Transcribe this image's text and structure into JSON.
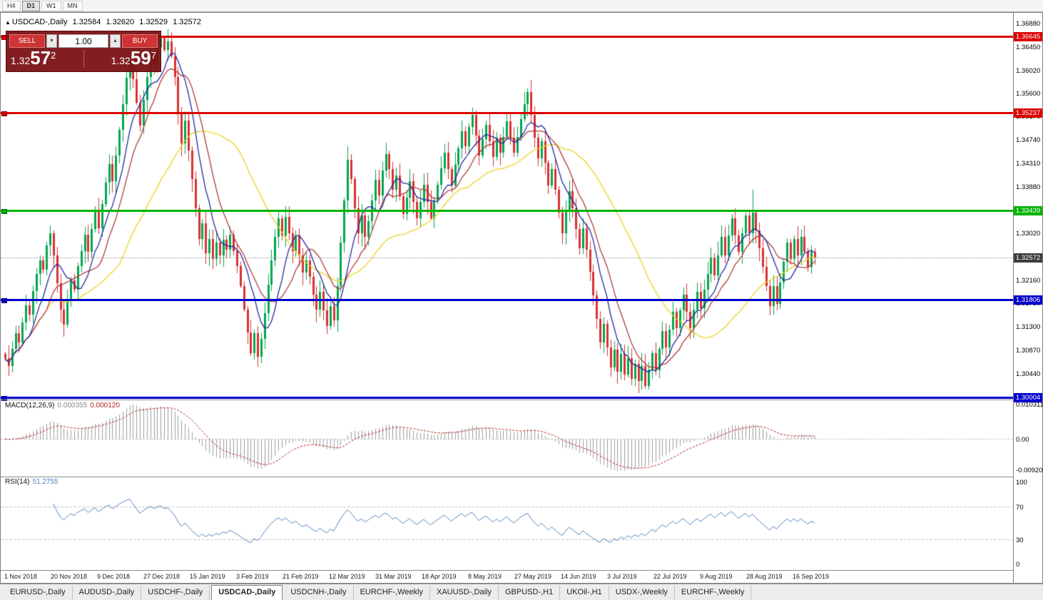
{
  "icons": {
    "direction_up": "▲",
    "spinner_down": "▼",
    "spinner_up": "▲"
  },
  "toolbar": {
    "timeframes": [
      {
        "label": "H4",
        "active": false
      },
      {
        "label": "D1",
        "active": true
      },
      {
        "label": "W1",
        "active": false
      },
      {
        "label": "MN",
        "active": false
      }
    ]
  },
  "chart": {
    "symbol": "USDCAD-,Daily",
    "ohlc": {
      "open": "1.32584",
      "high": "1.32620",
      "low": "1.32529",
      "close": "1.32572"
    }
  },
  "trade_panel": {
    "sell_label": "SELL",
    "buy_label": "BUY",
    "volume": "1.00",
    "sell_price": {
      "prefix": "1.32",
      "main": "57",
      "sup": "2"
    },
    "buy_price": {
      "prefix": "1.32",
      "main": "59",
      "sup": "7"
    }
  },
  "price_axis": {
    "ticks": [
      "1.36880",
      "1.36450",
      "1.36020",
      "1.35600",
      "1.35170",
      "1.34740",
      "1.34310",
      "1.33880",
      "1.33020",
      "1.32160",
      "1.31730",
      "1.31300",
      "1.30870",
      "1.30440"
    ],
    "levels": [
      {
        "label": "1.36645",
        "price": 1.36645,
        "color": "#dd0000",
        "kind": "resistance-line"
      },
      {
        "label": "1.35237",
        "price": 1.35237,
        "color": "#dd0000",
        "kind": "resistance-line"
      },
      {
        "label": "1.33439",
        "price": 1.33439,
        "color": "#00b400",
        "kind": "pivot-line"
      },
      {
        "label": "1.31806",
        "price": 1.31806,
        "color": "#0000cc",
        "kind": "support-line"
      },
      {
        "label": "1.30004",
        "price": 1.30004,
        "color": "#0000cc",
        "kind": "support-line"
      }
    ],
    "current": {
      "label": "1.32572",
      "price": 1.32572,
      "bg": "#3c3c3c"
    }
  },
  "macd": {
    "name": "MACD(12,26,9)",
    "value_main": "0.000355",
    "value_signal": "0.000120",
    "axis": [
      "0.010311",
      "0.00",
      "-0.009203"
    ]
  },
  "rsi": {
    "name": "RSI(14)",
    "value": "51.2755",
    "axis": [
      "100",
      "70",
      "30",
      "0"
    ]
  },
  "date_axis": {
    "labels": [
      "1 Nov 2018",
      "20 Nov 2018",
      "9 Dec 2018",
      "27 Dec 2018",
      "15 Jan 2019",
      "3 Feb 2019",
      "21 Feb 2019",
      "12 Mar 2019",
      "31 Mar 2019",
      "18 Apr 2019",
      "8 May 2019",
      "27 May 2019",
      "14 Jun 2019",
      "3 Jul 2019",
      "22 Jul 2019",
      "9 Aug 2019",
      "28 Aug 2019",
      "16 Sep 2019"
    ]
  },
  "tabs": [
    {
      "label": "EURUSD-,Daily",
      "active": false
    },
    {
      "label": "AUDUSD-,Daily",
      "active": false
    },
    {
      "label": "USDCHF-,Daily",
      "active": false
    },
    {
      "label": "USDCAD-,Daily",
      "active": true
    },
    {
      "label": "USDCNH-,Daily",
      "active": false
    },
    {
      "label": "EURCHF-,Weekly",
      "active": false
    },
    {
      "label": "XAUUSD-,Daily",
      "active": false
    },
    {
      "label": "GBPUSD-,H1",
      "active": false
    },
    {
      "label": "UKOil-,H1",
      "active": false
    },
    {
      "label": "USDX-,Weekly",
      "active": false
    },
    {
      "label": "EURCHF-,Weekly",
      "active": false
    }
  ],
  "chart_data": {
    "type": "candlestick",
    "symbol": "USDCAD",
    "timeframe": "Daily",
    "price_axis_top": 1.3688,
    "price_axis_bottom": 1.30004,
    "current_price": 1.32572,
    "up_color": "#00a650",
    "down_color": "#d93030",
    "first_open": 1.308,
    "closes": [
      1.3072,
      1.3058,
      1.309,
      1.3118,
      1.3102,
      1.3138,
      1.317,
      1.3152,
      1.3196,
      1.3228,
      1.3252,
      1.3235,
      1.328,
      1.3302,
      1.3262,
      1.321,
      1.3162,
      1.3134,
      1.3178,
      1.3215,
      1.3198,
      1.3242,
      1.327,
      1.33,
      1.3268,
      1.331,
      1.3345,
      1.3312,
      1.3356,
      1.3395,
      1.343,
      1.3398,
      1.3445,
      1.3492,
      1.354,
      1.3588,
      1.3625,
      1.3585,
      1.3542,
      1.35,
      1.3548,
      1.359,
      1.3632,
      1.3612,
      1.3645,
      1.3662,
      1.364,
      1.3655,
      1.3628,
      1.359,
      1.3525,
      1.3468,
      1.351,
      1.3455,
      1.3402,
      1.3348,
      1.3292,
      1.332,
      1.3265,
      1.3292,
      1.3255,
      1.3285,
      1.3262,
      1.329,
      1.3272,
      1.33,
      1.327,
      1.3242,
      1.3205,
      1.3162,
      1.312,
      1.3082,
      1.3118,
      1.3075,
      1.3108,
      1.3155,
      1.3208,
      1.3252,
      1.3295,
      1.333,
      1.3298,
      1.3332,
      1.3302,
      1.327,
      1.3298,
      1.3262,
      1.323,
      1.3252,
      1.3222,
      1.319,
      1.3162,
      1.3195,
      1.316,
      1.3132,
      1.3168,
      1.3142,
      1.3205,
      1.3285,
      1.3362,
      1.3438,
      1.3402,
      1.3348,
      1.3302,
      1.3335,
      1.3295,
      1.3325,
      1.3362,
      1.34,
      1.3372,
      1.3418,
      1.3448,
      1.342,
      1.3382,
      1.3408,
      1.337,
      1.3338,
      1.3368,
      1.3398,
      1.336,
      1.333,
      1.336,
      1.3392,
      1.336,
      1.333,
      1.3362,
      1.3392,
      1.3422,
      1.345,
      1.342,
      1.339,
      1.3428,
      1.3458,
      1.349,
      1.3462,
      1.3498,
      1.352,
      1.3482,
      1.3445,
      1.3475,
      1.3502,
      1.3472,
      1.3442,
      1.3478,
      1.345,
      1.348,
      1.3508,
      1.3478,
      1.345,
      1.348,
      1.3512,
      1.354,
      1.3562,
      1.352,
      1.3478,
      1.344,
      1.3472,
      1.3432,
      1.339,
      1.342,
      1.3382,
      1.334,
      1.3302,
      1.3342,
      1.338,
      1.3348,
      1.331,
      1.3275,
      1.3312,
      1.3272,
      1.3232,
      1.3188,
      1.3145,
      1.3102,
      1.3135,
      1.3092,
      1.3055,
      1.3088,
      1.3048,
      1.308,
      1.3042,
      1.3072,
      1.3035,
      1.3062,
      1.303,
      1.3058,
      1.3022,
      1.3052,
      1.3082,
      1.305,
      1.309,
      1.3122,
      1.3092,
      1.3125,
      1.3158,
      1.3128,
      1.316,
      1.319,
      1.3158,
      1.3128,
      1.3162,
      1.3195,
      1.3165,
      1.3198,
      1.3228,
      1.3258,
      1.3225,
      1.3262,
      1.3295,
      1.3262,
      1.3298,
      1.333,
      1.3298,
      1.3268,
      1.3302,
      1.3335,
      1.3302,
      1.334,
      1.3308,
      1.3275,
      1.324,
      1.3205,
      1.3168,
      1.3205,
      1.3172,
      1.3212,
      1.325,
      1.3285,
      1.3255,
      1.3292,
      1.3262,
      1.3295,
      1.3268,
      1.324,
      1.3268,
      1.3257
    ],
    "spikes": {
      "36": {
        "high": 1.3638
      },
      "45": {
        "high": 1.36645
      },
      "99": {
        "high": 1.3462
      },
      "151": {
        "high": 1.3568
      },
      "185": {
        "low": 1.3016
      },
      "216": {
        "high": 1.3382
      }
    },
    "moving_averages": [
      {
        "period": 34,
        "color": "#e8d41e"
      },
      {
        "period": 13,
        "color": "#b23a3a"
      },
      {
        "period": 8,
        "color": "#27279f"
      }
    ],
    "macd": {
      "fast": 12,
      "slow": 26,
      "signal": 9,
      "scale_top": 0.010311,
      "scale_bottom": -0.009203,
      "histogram_color": "#9c9c9c",
      "signal_color": "#b22222"
    },
    "rsi": {
      "period": 14,
      "levels": [
        70,
        30
      ],
      "line_color": "#4f81bd"
    },
    "horizontal_levels": [
      1.36645,
      1.35237,
      1.33439,
      1.31806,
      1.30004
    ]
  }
}
